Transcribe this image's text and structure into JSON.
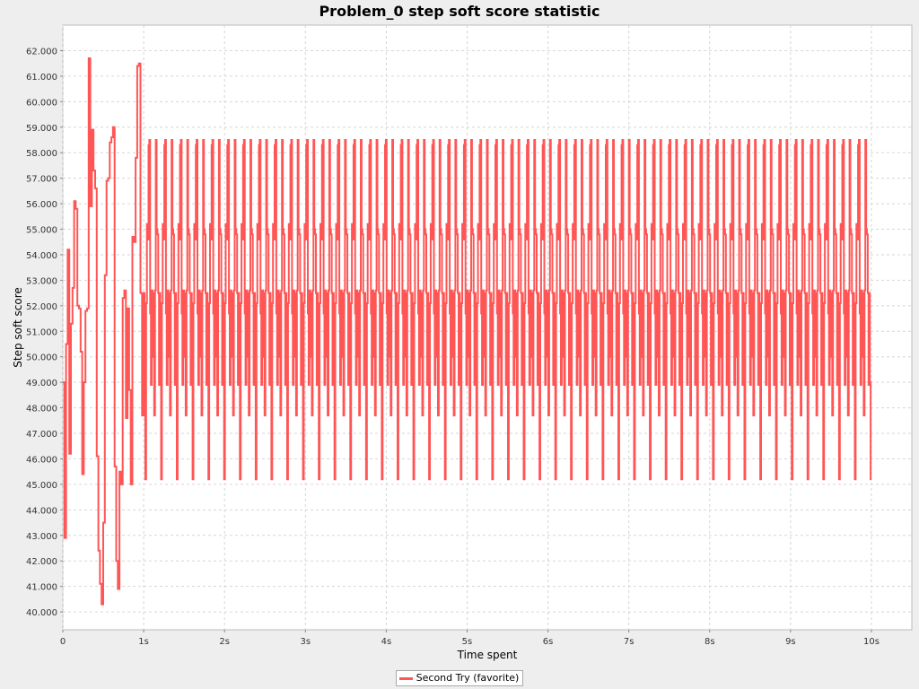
{
  "chart_data": {
    "type": "line",
    "title": "Problem_0 step soft score statistic",
    "xlabel": "Time spent",
    "ylabel": "Step soft score",
    "xlim": [
      0,
      10.5
    ],
    "ylim": [
      39.3,
      63.0
    ],
    "x_ticks": [
      0,
      1,
      2,
      3,
      4,
      5,
      6,
      7,
      8,
      9,
      10
    ],
    "x_tick_labels": [
      "0",
      "1s",
      "2s",
      "3s",
      "4s",
      "5s",
      "6s",
      "7s",
      "8s",
      "9s",
      "10s"
    ],
    "y_ticks": [
      40,
      41,
      42,
      43,
      44,
      45,
      46,
      47,
      48,
      49,
      50,
      51,
      52,
      53,
      54,
      55,
      56,
      57,
      58,
      59,
      60,
      61,
      62
    ],
    "y_tick_labels": [
      "40.000",
      "41.000",
      "42.000",
      "43.000",
      "44.000",
      "45.000",
      "46.000",
      "47.000",
      "48.000",
      "49.000",
      "50.000",
      "51.000",
      "52.000",
      "53.000",
      "54.000",
      "55.000",
      "56.000",
      "57.000",
      "58.000",
      "59.000",
      "60.000",
      "61.000",
      "62.000"
    ],
    "grid": true,
    "legend_position": "bottom",
    "line_style": "step",
    "series": [
      {
        "name": "Second Try (favorite)",
        "color": "#ff5555",
        "warmup_x": [
          0.0,
          0.02,
          0.04,
          0.06,
          0.08,
          0.1,
          0.12,
          0.14,
          0.16,
          0.18,
          0.2,
          0.22,
          0.24,
          0.26,
          0.28,
          0.3,
          0.32,
          0.34,
          0.36,
          0.38,
          0.4,
          0.42,
          0.44,
          0.46,
          0.48,
          0.5,
          0.52,
          0.54,
          0.56,
          0.58,
          0.6,
          0.62,
          0.64,
          0.66,
          0.68,
          0.7,
          0.72,
          0.74,
          0.76,
          0.78,
          0.8,
          0.82,
          0.84,
          0.86,
          0.88,
          0.9,
          0.92,
          0.94,
          0.96,
          0.98,
          1.0
        ],
        "warmup_y": [
          49.0,
          42.9,
          50.5,
          54.2,
          46.2,
          51.3,
          52.7,
          56.1,
          55.8,
          52.0,
          51.9,
          50.2,
          45.4,
          49.0,
          51.8,
          51.9,
          61.7,
          55.9,
          58.9,
          57.3,
          56.6,
          46.1,
          42.4,
          41.1,
          40.3,
          43.5,
          53.2,
          56.9,
          57.0,
          58.4,
          58.6,
          59.0,
          45.7,
          42.0,
          40.9,
          45.5,
          45.0,
          52.3,
          52.6,
          47.6,
          51.9,
          48.7,
          45.0,
          54.7,
          54.5,
          57.8,
          61.4,
          61.5,
          52.5,
          47.7,
          52.5
        ],
        "cycle_period": 0.195,
        "cycle_start": 1.0,
        "cycle_end": 10.0,
        "cycle_steps": [
          0.0,
          0.01,
          0.02,
          0.03,
          0.04,
          0.05,
          0.06,
          0.07,
          0.08,
          0.09,
          0.1,
          0.11,
          0.12,
          0.13,
          0.14,
          0.15,
          0.16,
          0.17,
          0.18,
          0.19
        ],
        "cycle_values": [
          52.5,
          49.0,
          45.2,
          52.1,
          55.2,
          54.6,
          58.3,
          58.5,
          51.7,
          48.9,
          52.6,
          52.5,
          50.0,
          47.7,
          52.6,
          58.5,
          55.0,
          54.8,
          52.5,
          48.9
        ],
        "final_x": 10.0,
        "final_y": 45.2
      }
    ]
  }
}
